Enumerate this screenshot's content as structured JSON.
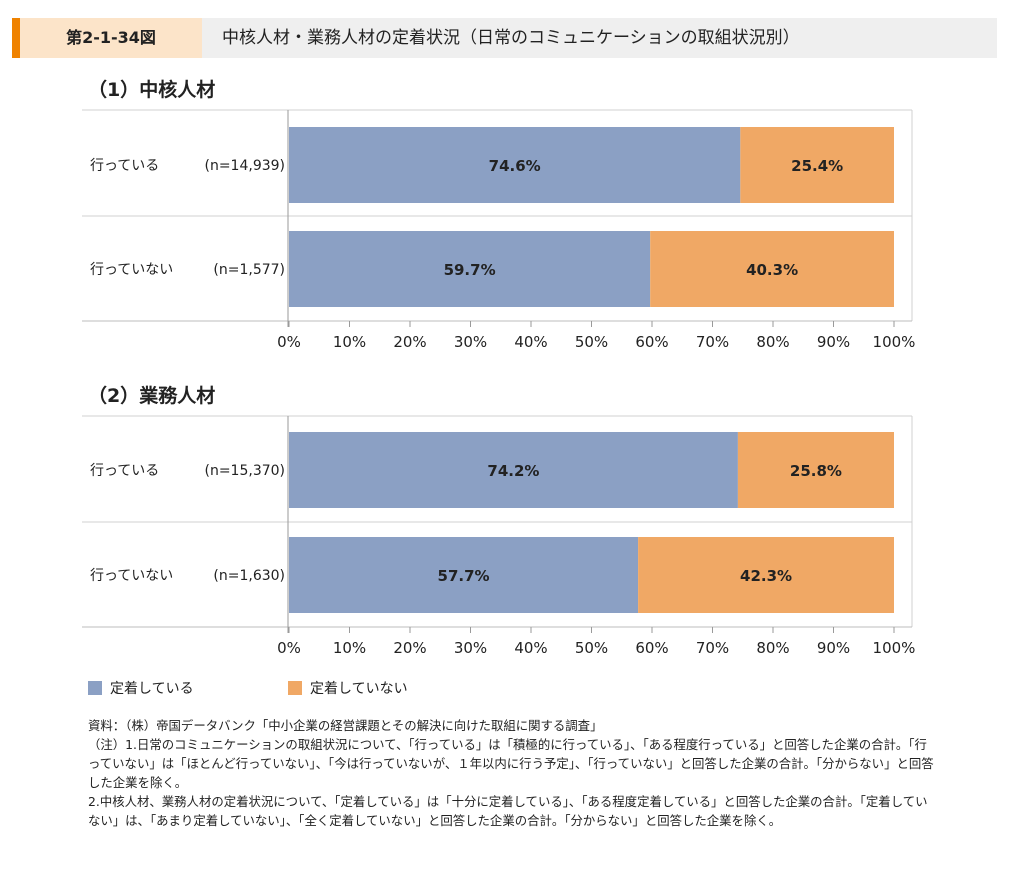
{
  "header": {
    "figure_label": "第2-1-34図",
    "figure_title": "中核人材・業務人材の定着状況（日常のコミュニケーションの取組状況別）"
  },
  "colors": {
    "retained": "#8ba0c4",
    "not_retained": "#f0a865",
    "header_accent": "#ef8200",
    "header_label_bg": "#fce4c9",
    "header_bg": "#efefef"
  },
  "chart_data": [
    {
      "type": "bar",
      "orientation": "horizontal",
      "stacked": true,
      "title": "（1）中核人材",
      "categories": [
        "行っている",
        "行っていない"
      ],
      "sample_sizes": [
        "(n=14,939)",
        "(n=1,577)"
      ],
      "series": [
        {
          "name": "定着している",
          "values": [
            74.6,
            59.7
          ],
          "labels": [
            "74.6%",
            "59.7%"
          ]
        },
        {
          "name": "定着していない",
          "values": [
            25.4,
            40.3
          ],
          "labels": [
            "25.4%",
            "40.3%"
          ]
        }
      ],
      "xlim": [
        0,
        100
      ],
      "ticks": [
        "0%",
        "10%",
        "20%",
        "30%",
        "40%",
        "50%",
        "60%",
        "70%",
        "80%",
        "90%",
        "100%"
      ]
    },
    {
      "type": "bar",
      "orientation": "horizontal",
      "stacked": true,
      "title": "（2）業務人材",
      "categories": [
        "行っている",
        "行っていない"
      ],
      "sample_sizes": [
        "(n=15,370)",
        "(n=1,630)"
      ],
      "series": [
        {
          "name": "定着している",
          "values": [
            74.2,
            57.7
          ],
          "labels": [
            "74.2%",
            "57.7%"
          ]
        },
        {
          "name": "定着していない",
          "values": [
            25.8,
            42.3
          ],
          "labels": [
            "25.8%",
            "42.3%"
          ]
        }
      ],
      "xlim": [
        0,
        100
      ],
      "ticks": [
        "0%",
        "10%",
        "20%",
        "30%",
        "40%",
        "50%",
        "60%",
        "70%",
        "80%",
        "90%",
        "100%"
      ]
    }
  ],
  "legend": [
    {
      "label": "定着している"
    },
    {
      "label": "定着していない"
    }
  ],
  "notes": {
    "source": "資料：（株）帝国データバンク「中小企業の経営課題とその解決に向けた取組に関する調査」",
    "note1": "（注）1.日常のコミュニケーションの取組状況について、「行っている」は「積極的に行っている」、「ある程度行っている」と回答した企業の合計。「行っていない」は「ほとんど行っていない」、「今は行っていないが、１年以内に行う予定」、「行っていない」と回答した企業の合計。「分からない」と回答した企業を除く。",
    "note2": "2.中核人材、業務人材の定着状況について、「定着している」は「十分に定着している」、「ある程度定着している」と回答した企業の合計。「定着していない」は、「あまり定着していない」、「全く定着していない」と回答した企業の合計。「分からない」と回答した企業を除く。"
  }
}
